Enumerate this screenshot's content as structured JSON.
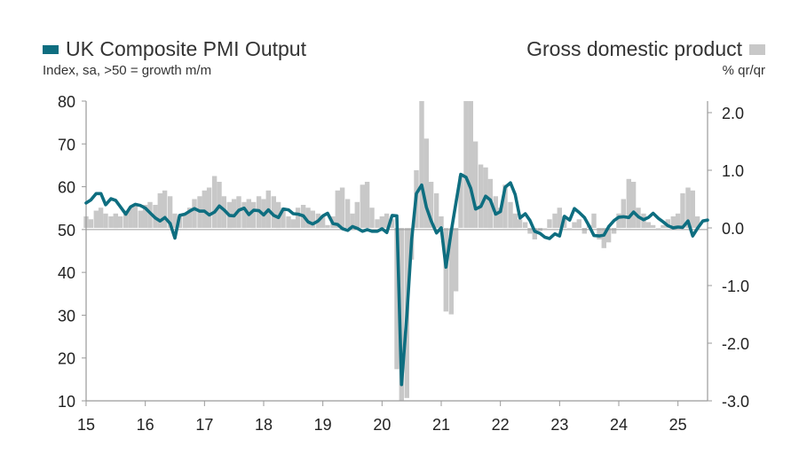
{
  "chart_data": {
    "type": "bar+line",
    "legend": {
      "line_name": "UK Composite PMI Output",
      "line_units": "Index, sa, >50 = growth m/m",
      "bar_name": "Gross domestic product",
      "bar_units": "% qr/qr"
    },
    "colors": {
      "line": "#0e6e80",
      "bars": "#c8c8c8",
      "axis": "#9a9a9a"
    },
    "left_axis": {
      "ylim": [
        10,
        80
      ],
      "ticks": [
        "80",
        "70",
        "60",
        "50",
        "40",
        "30",
        "20",
        "10"
      ]
    },
    "right_axis": {
      "ylim": [
        -3.0,
        2.2
      ],
      "ticks": [
        "2.0",
        "1.0",
        "0.0",
        "-1.0",
        "-2.0",
        "-3.0"
      ]
    },
    "x_axis": {
      "start": 2015.0,
      "end": 2025.5,
      "tick_labels": [
        "15",
        "16",
        "17",
        "18",
        "19",
        "20",
        "21",
        "22",
        "23",
        "24",
        "25"
      ]
    },
    "pmi_series": {
      "x": [
        2015.0,
        2015.08,
        2015.17,
        2015.25,
        2015.33,
        2015.42,
        2015.5,
        2015.58,
        2015.67,
        2015.75,
        2015.83,
        2015.92,
        2016.0,
        2016.08,
        2016.17,
        2016.25,
        2016.33,
        2016.42,
        2016.5,
        2016.58,
        2016.67,
        2016.75,
        2016.83,
        2016.92,
        2017.0,
        2017.08,
        2017.17,
        2017.25,
        2017.33,
        2017.42,
        2017.5,
        2017.58,
        2017.67,
        2017.75,
        2017.83,
        2017.92,
        2018.0,
        2018.08,
        2018.17,
        2018.25,
        2018.33,
        2018.42,
        2018.5,
        2018.58,
        2018.67,
        2018.75,
        2018.83,
        2018.92,
        2019.0,
        2019.08,
        2019.17,
        2019.25,
        2019.33,
        2019.42,
        2019.5,
        2019.58,
        2019.67,
        2019.75,
        2019.83,
        2019.92,
        2020.0,
        2020.08,
        2020.17,
        2020.25,
        2020.33,
        2020.42,
        2020.5,
        2020.58,
        2020.67,
        2020.75,
        2020.83,
        2020.92,
        2021.0,
        2021.08,
        2021.17,
        2021.25,
        2021.33,
        2021.42,
        2021.5,
        2021.58,
        2021.67,
        2021.75,
        2021.83,
        2021.92,
        2022.0,
        2022.08,
        2022.17,
        2022.25,
        2022.33,
        2022.42,
        2022.5,
        2022.58,
        2022.67,
        2022.75,
        2022.83,
        2022.92,
        2023.0,
        2023.08,
        2023.17,
        2023.25,
        2023.33,
        2023.42,
        2023.5,
        2023.58,
        2023.67,
        2023.75,
        2023.83,
        2023.92,
        2024.0,
        2024.08,
        2024.17,
        2024.25,
        2024.33,
        2024.42,
        2024.5,
        2024.58,
        2024.67,
        2024.75,
        2024.83,
        2024.92,
        2025.0,
        2025.08,
        2025.17,
        2025.25,
        2025.33,
        2025.42,
        2025.5
      ],
      "values": [
        56.2,
        56.9,
        58.4,
        58.4,
        55.8,
        57.2,
        56.8,
        55.3,
        53.6,
        55.3,
        55.9,
        55.6,
        55.0,
        53.9,
        52.7,
        52.0,
        52.8,
        51.4,
        48.0,
        53.3,
        53.6,
        54.3,
        54.9,
        54.3,
        54.3,
        53.4,
        54.1,
        55.5,
        54.6,
        53.3,
        53.2,
        54.5,
        55.0,
        53.5,
        54.5,
        54.4,
        53.4,
        54.6,
        53.3,
        52.8,
        54.8,
        54.6,
        53.7,
        53.6,
        53.2,
        51.8,
        51.3,
        52.0,
        53.2,
        53.8,
        51.4,
        51.2,
        50.2,
        49.8,
        50.7,
        50.3,
        49.6,
        50.0,
        49.6,
        49.6,
        50.2,
        49.3,
        53.3,
        53.2,
        13.8,
        30.0,
        47.7,
        58.4,
        60.4,
        55.2,
        52.0,
        49.2,
        50.4,
        41.2,
        49.6,
        56.4,
        62.9,
        62.2,
        59.6,
        54.8,
        55.4,
        57.8,
        56.9,
        53.6,
        54.2,
        59.9,
        60.9,
        58.2,
        52.7,
        53.7,
        52.1,
        49.6,
        49.1,
        48.2,
        47.9,
        49.0,
        48.5,
        53.1,
        52.2,
        54.9,
        54.0,
        52.8,
        50.8,
        48.6,
        48.5,
        48.7,
        50.7,
        52.1,
        52.9,
        53.0,
        52.8,
        54.1,
        53.0,
        52.3,
        52.8,
        53.8,
        52.6,
        51.8,
        50.9,
        50.4,
        50.6,
        50.5,
        52.0,
        48.5,
        50.3,
        52.0,
        52.2
      ]
    },
    "gdp_series": {
      "x": [
        2015.0,
        2015.08,
        2015.17,
        2015.25,
        2015.33,
        2015.42,
        2015.5,
        2015.58,
        2015.67,
        2015.75,
        2015.83,
        2015.92,
        2016.0,
        2016.08,
        2016.17,
        2016.25,
        2016.33,
        2016.42,
        2016.5,
        2016.58,
        2016.67,
        2016.75,
        2016.83,
        2016.92,
        2017.0,
        2017.08,
        2017.17,
        2017.25,
        2017.33,
        2017.42,
        2017.5,
        2017.58,
        2017.67,
        2017.75,
        2017.83,
        2017.92,
        2018.0,
        2018.08,
        2018.17,
        2018.25,
        2018.33,
        2018.42,
        2018.5,
        2018.58,
        2018.67,
        2018.75,
        2018.83,
        2018.92,
        2019.0,
        2019.08,
        2019.17,
        2019.25,
        2019.33,
        2019.42,
        2019.5,
        2019.58,
        2019.67,
        2019.75,
        2019.83,
        2019.92,
        2020.0,
        2020.08,
        2020.17,
        2020.25,
        2020.33,
        2020.42,
        2020.5,
        2020.58,
        2020.67,
        2020.75,
        2020.83,
        2020.92,
        2021.0,
        2021.08,
        2021.17,
        2021.25,
        2021.33,
        2021.42,
        2021.5,
        2021.58,
        2021.67,
        2021.75,
        2021.83,
        2021.92,
        2022.0,
        2022.08,
        2022.17,
        2022.25,
        2022.33,
        2022.42,
        2022.5,
        2022.58,
        2022.67,
        2022.75,
        2022.83,
        2022.92,
        2023.0,
        2023.08,
        2023.17,
        2023.25,
        2023.33,
        2023.42,
        2023.5,
        2023.58,
        2023.67,
        2023.75,
        2023.83,
        2023.92,
        2024.0,
        2024.08,
        2024.17,
        2024.25,
        2024.33,
        2024.42,
        2024.5,
        2024.58,
        2024.67,
        2024.75,
        2024.83,
        2024.92,
        2025.0,
        2025.08,
        2025.17,
        2025.25,
        2025.33
      ],
      "values": [
        0.2,
        0.15,
        0.3,
        0.35,
        0.25,
        0.2,
        0.25,
        0.2,
        0.3,
        0.35,
        0.4,
        0.3,
        0.4,
        0.45,
        0.4,
        0.6,
        0.65,
        0.55,
        0.25,
        0.2,
        0.25,
        0.35,
        0.5,
        0.55,
        0.65,
        0.7,
        0.9,
        0.8,
        0.55,
        0.45,
        0.5,
        0.55,
        0.45,
        0.5,
        0.45,
        0.55,
        0.5,
        0.65,
        0.55,
        0.45,
        0.35,
        0.2,
        0.15,
        0.35,
        0.4,
        0.35,
        0.3,
        0.25,
        0.2,
        0.05,
        0.2,
        0.65,
        0.7,
        0.5,
        0.25,
        0.45,
        0.75,
        0.8,
        0.35,
        0.15,
        0.2,
        0.25,
        0.15,
        -2.45,
        -3.0,
        -2.95,
        -0.55,
        1.0,
        2.2,
        1.55,
        0.8,
        0.6,
        0.2,
        -1.45,
        -1.5,
        -1.1,
        0.9,
        2.2,
        2.2,
        1.5,
        1.1,
        1.05,
        0.85,
        0.55,
        0.35,
        0.75,
        0.45,
        0.25,
        0.15,
        0.1,
        -0.1,
        -0.2,
        -0.05,
        0.0,
        0.15,
        0.25,
        0.35,
        0.2,
        0.0,
        0.1,
        0.15,
        -0.1,
        0.05,
        0.25,
        -0.2,
        -0.35,
        -0.25,
        -0.1,
        0.25,
        0.5,
        0.85,
        0.8,
        0.35,
        0.25,
        0.1,
        0.05,
        0.0,
        0.05,
        0.15,
        0.2,
        0.25,
        0.6,
        0.7,
        0.65,
        0.2
      ]
    }
  }
}
